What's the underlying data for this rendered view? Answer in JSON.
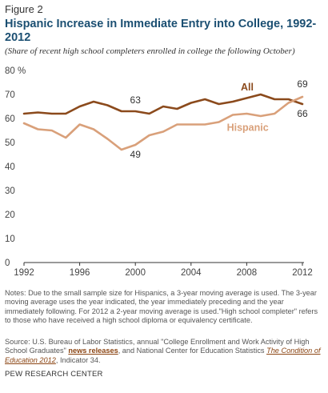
{
  "figure_label": "Figure 2",
  "title": "Hispanic Increase in Immediate Entry into College, 1992-2012",
  "subtitle": "(Share of recent high school completers enrolled in college the following October)",
  "chart_data": {
    "type": "line",
    "x": [
      1992,
      1993,
      1994,
      1995,
      1996,
      1997,
      1998,
      1999,
      2000,
      2001,
      2002,
      2003,
      2004,
      2005,
      2006,
      2007,
      2008,
      2009,
      2010,
      2011,
      2012
    ],
    "series": [
      {
        "name": "All",
        "color": "#8b4a1c",
        "values": [
          62,
          62.5,
          62,
          62,
          65,
          67,
          65.5,
          63,
          63,
          62,
          65,
          64,
          66.5,
          68,
          66,
          67,
          68.5,
          70,
          68,
          68,
          66
        ]
      },
      {
        "name": "Hispanic",
        "color": "#d9a07a",
        "values": [
          58,
          55.5,
          55,
          52,
          57.5,
          55.5,
          51.5,
          47,
          49,
          53,
          54.5,
          57.5,
          57.5,
          57.5,
          58.5,
          61.5,
          62,
          61,
          62,
          66.5,
          69
        ]
      }
    ],
    "xticks": [
      "1992",
      "1996",
      "2000",
      "2004",
      "2008",
      "2012"
    ],
    "yticks": [
      "0",
      "10",
      "20",
      "30",
      "40",
      "50",
      "60",
      "70",
      "80 %"
    ],
    "ylim": [
      0,
      80
    ],
    "xlim": [
      1992,
      2012
    ],
    "annotations": [
      {
        "text": "63",
        "x": 2000,
        "y": 63
      },
      {
        "text": "49",
        "x": 2000,
        "y": 49
      },
      {
        "text": "69",
        "x": 2012,
        "y": 69
      },
      {
        "text": "66",
        "x": 2012,
        "y": 66
      }
    ],
    "grid": false
  },
  "notes": "Notes: Due to the small sample size for Hispanics, a 3-year moving average is used. The 3-year moving average uses the year indicated, the year immediately preceding and the year immediately following. For 2012 a 2-year moving average is used.\"High school completer\" refers to those who have received a high school diploma or equivalency certificate.",
  "source": {
    "part1": "Source: U.S. Bureau of Labor Statistics, annual \"College Enrollment and Work Activity of High School Graduates\" ",
    "link": "news releases",
    "part2": ", and National Center for Education Statistics ",
    "report": "The Condition of Education 2012",
    "part3": ", Indicator 34."
  },
  "brand": "PEW RESEARCH CENTER"
}
